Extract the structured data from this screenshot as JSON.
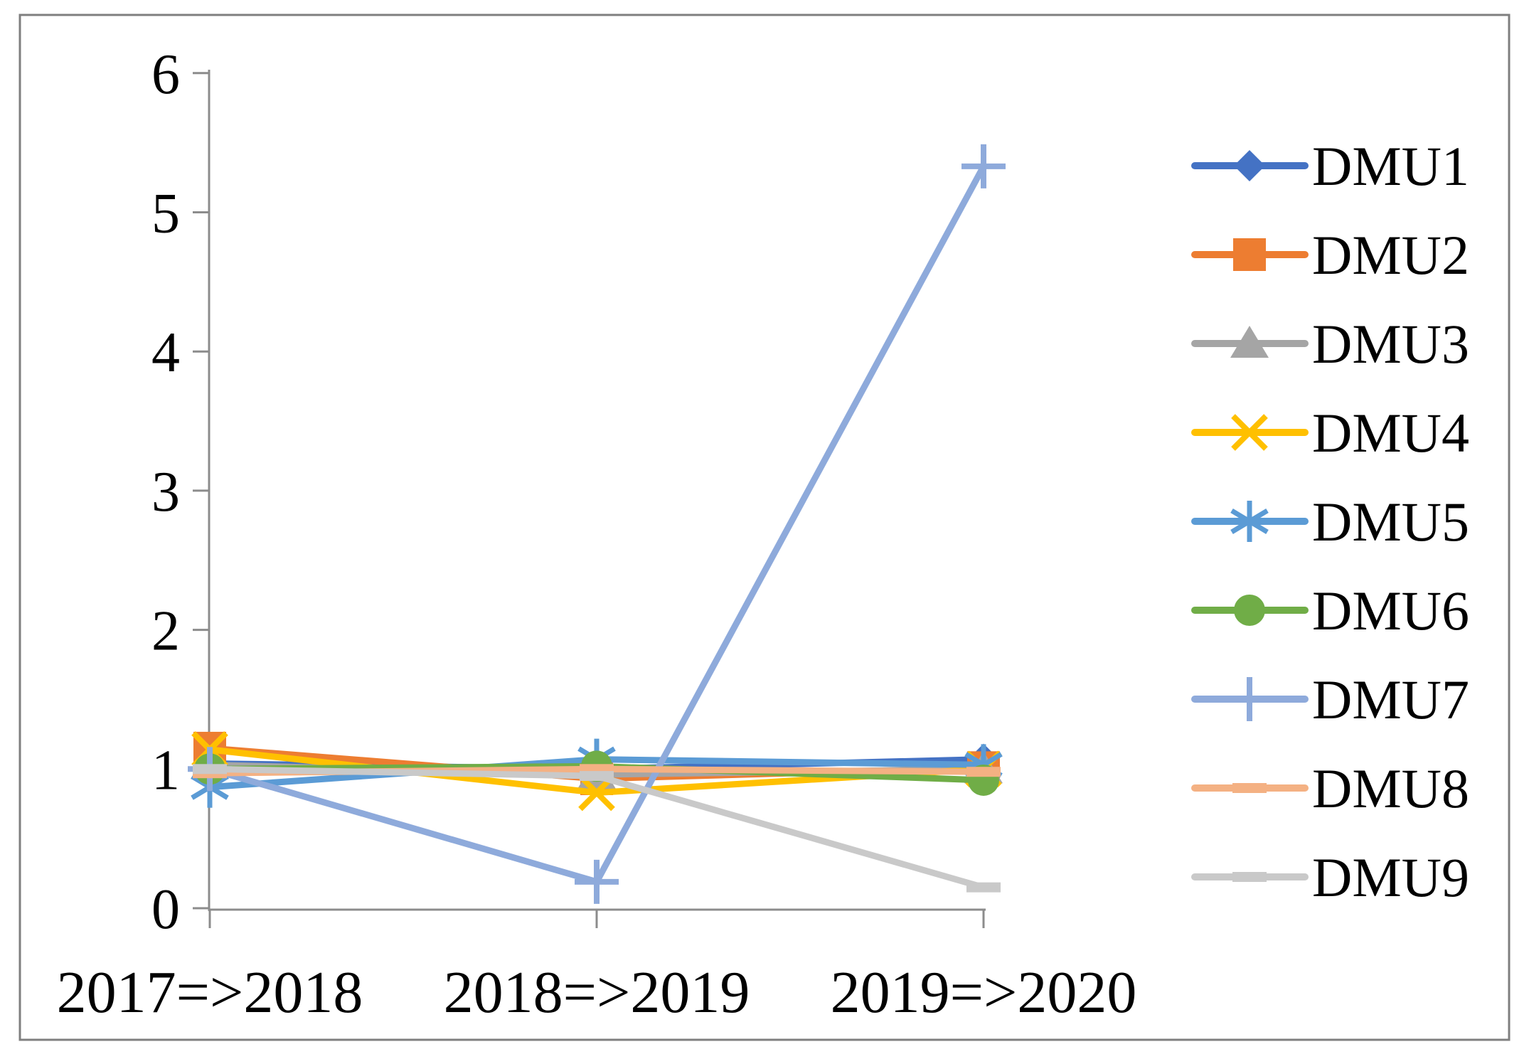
{
  "figure": {
    "border_color": "#7F7F7F",
    "background": "#FFFFFF"
  },
  "chart_data": {
    "type": "line",
    "title": "",
    "grid": false,
    "axis_color": "#8C8C8C",
    "text_color": "#000000",
    "legend_position": "right",
    "categories": [
      "2017=>2018",
      "2018=>2019",
      "2019=>2020"
    ],
    "x_axis": {
      "tick_labels": [
        "2017=>2018",
        "2018=>2019",
        "2019=>2020"
      ]
    },
    "y_axis": {
      "min": 0,
      "max": 6,
      "step": 1,
      "tick_labels": [
        "0",
        "1",
        "2",
        "3",
        "4",
        "5",
        "6"
      ]
    },
    "series": [
      {
        "name": "DMU1",
        "color": "#4472C4",
        "marker": "diamond",
        "values": [
          1.04,
          1.0,
          1.07
        ]
      },
      {
        "name": "DMU2",
        "color": "#ED7D31",
        "marker": "square",
        "values": [
          1.15,
          0.93,
          1.01
        ]
      },
      {
        "name": "DMU3",
        "color": "#A5A5A5",
        "marker": "triangle",
        "values": [
          1.03,
          0.96,
          1.0
        ]
      },
      {
        "name": "DMU4",
        "color": "#FFC000",
        "marker": "x",
        "values": [
          1.14,
          0.83,
          1.0
        ]
      },
      {
        "name": "DMU5",
        "color": "#5B9BD5",
        "marker": "asterisk",
        "values": [
          0.87,
          1.07,
          1.03
        ]
      },
      {
        "name": "DMU6",
        "color": "#70AD47",
        "marker": "circle",
        "values": [
          1.0,
          1.02,
          0.92
        ]
      },
      {
        "name": "DMU7",
        "color": "#8EAADB",
        "marker": "plus",
        "values": [
          1.0,
          0.19,
          5.33
        ]
      },
      {
        "name": "DMU8",
        "color": "#F4B183",
        "marker": "dash",
        "values": [
          0.97,
          1.0,
          0.98
        ]
      },
      {
        "name": "DMU9",
        "color": "#C9C9C9",
        "marker": "dash",
        "values": [
          1.0,
          0.95,
          0.15
        ]
      }
    ],
    "legend": {
      "labels": [
        "DMU1",
        "DMU2",
        "DMU3",
        "DMU4",
        "DMU5",
        "DMU6",
        "DMU7",
        "DMU8",
        "DMU9"
      ]
    }
  }
}
